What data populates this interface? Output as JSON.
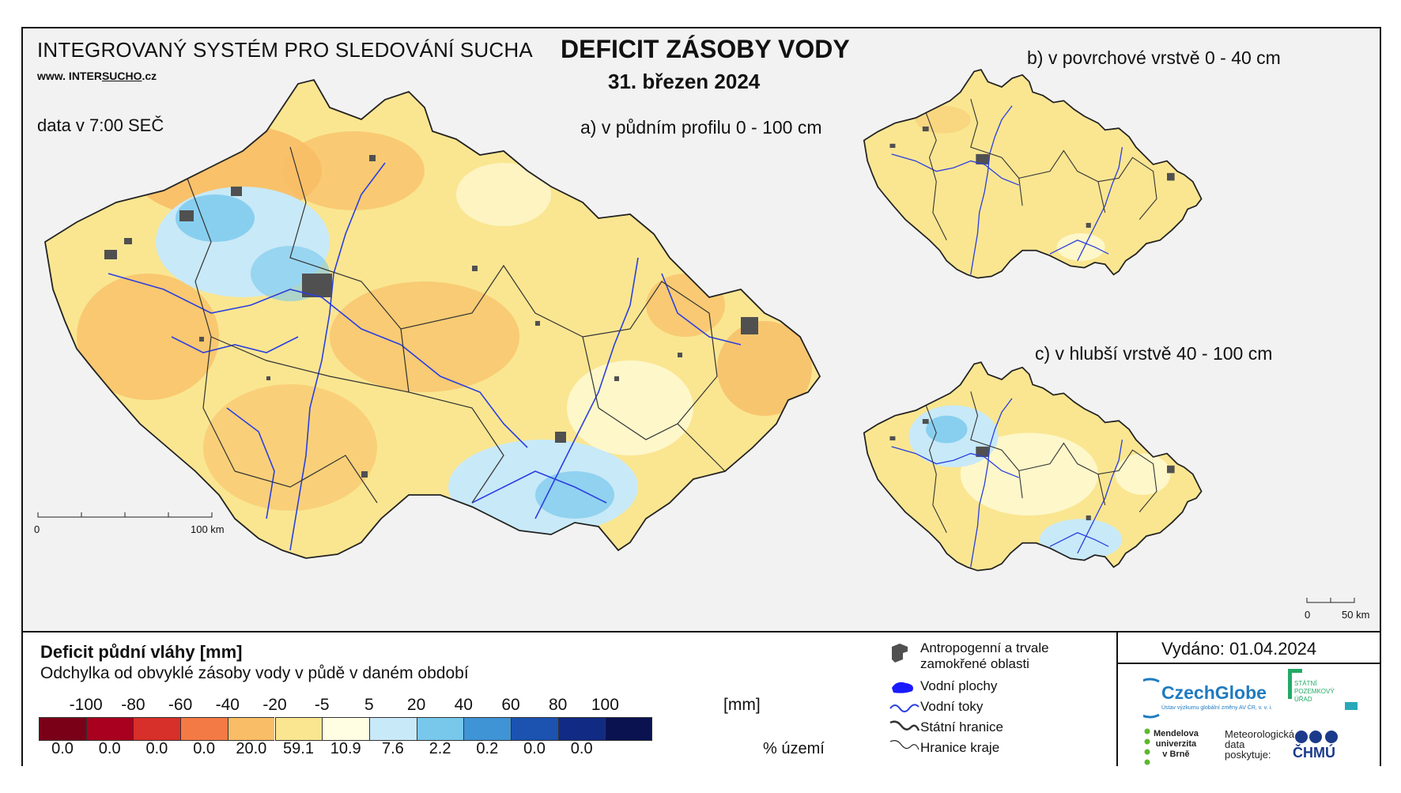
{
  "header": {
    "system_title": "INTEGROVANÝ SYSTÉM PRO SLEDOVÁNÍ SUCHA",
    "website_prefix": "www. INTER",
    "website_highlight": "SUCHO",
    "website_suffix": ".cz",
    "data_time": "data v 7:00 SEČ",
    "main_title": "DEFICIT ZÁSOBY VODY",
    "date": "31. březen 2024"
  },
  "maps": {
    "a_label": "a) v půdním profilu 0 - 100 cm",
    "b_label": "b) v povrchové vrstvě 0 - 40 cm",
    "c_label": "c) v hlubší vrstvě 40 - 100 cm",
    "scale_main": {
      "start": "0",
      "end": "100 km"
    },
    "scale_small": {
      "start": "0",
      "end": "50 km"
    }
  },
  "legend": {
    "title": "Deficit půdní vláhy  [mm]",
    "subtitle": "Odchylka od obvyklé zásoby vody v půdě v daném období",
    "ticks": [
      "-100",
      "-80",
      "-60",
      "-40",
      "-20",
      "-5",
      "5",
      "20",
      "40",
      "60",
      "80",
      "100"
    ],
    "unit": "[mm]",
    "classes": [
      {
        "color": "#7a0018",
        "percent": "0.0"
      },
      {
        "color": "#a8001e",
        "percent": "0.0"
      },
      {
        "color": "#d7302a",
        "percent": "0.0"
      },
      {
        "color": "#f47a45",
        "percent": "0.0"
      },
      {
        "color": "#f8bd66",
        "percent": "20.0"
      },
      {
        "color": "#fae691",
        "percent": "59.1"
      },
      {
        "color": "#fffde2",
        "percent": "10.9"
      },
      {
        "color": "#c8e9f7",
        "percent": "7.6"
      },
      {
        "color": "#78c8ec",
        "percent": "2.2"
      },
      {
        "color": "#3f94d6",
        "percent": "0.2"
      },
      {
        "color": "#1c52b0",
        "percent": "0.0"
      },
      {
        "color": "#112b84",
        "percent": "0.0"
      },
      {
        "color": "#0a1350",
        "percent": ""
      }
    ],
    "percent_label": "% území",
    "symbols": [
      {
        "icon": "urban-area-icon",
        "label_line1": "Antropogenní a trvale",
        "label_line2": "zamokřené oblasti"
      },
      {
        "icon": "water-body-icon",
        "label_line1": "Vodní plochy"
      },
      {
        "icon": "river-icon",
        "label_line1": "Vodní toky"
      },
      {
        "icon": "state-border-icon",
        "label_line1": "Státní hranice"
      },
      {
        "icon": "region-border-icon",
        "label_line1": "Hranice kraje"
      }
    ]
  },
  "footer": {
    "issued": "Vydáno: 01.04.2024",
    "logos": {
      "czechglobe": "CzechGlobe",
      "czechglobe_sub": "Ústav výzkumu globální změny AV ČR, v. v. i.",
      "spu_line1": "STÁTNÍ",
      "spu_line2": "POZEMKOVÝ",
      "spu_line3": "ÚŘAD",
      "mendel_line1": "Mendelova",
      "mendel_line2": "univerzita",
      "mendel_line3": "v Brně",
      "meteo_line1": "Meteorologická",
      "meteo_line2": "data",
      "meteo_line3": "poskytuje:",
      "chmu": "ČHMÚ"
    }
  },
  "colors": {
    "frame": "#111111",
    "map_bg": "#f2f2f2",
    "river": "#2b3fe0",
    "urban": "#505050",
    "dominant_class": "#fae691",
    "dry_class": "#f8bd66",
    "wet_class": "#c8e9f7"
  }
}
